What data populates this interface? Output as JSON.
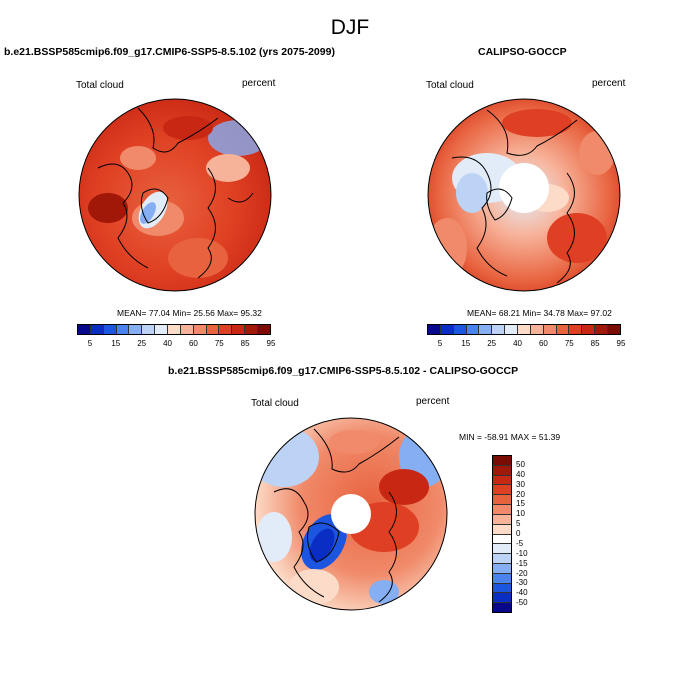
{
  "title": "DJF",
  "panel1": {
    "title": "b.e21.BSSP585cmip6.f09_g17.CMIP6-SSP5-8.5.102 (yrs 2075-2099)",
    "variable": "Total cloud",
    "units": "percent",
    "stats": "MEAN=  77.04  Min=  25.56  Max=  95.32"
  },
  "panel2": {
    "title": "CALIPSO-GOCCP",
    "variable": "Total cloud",
    "units": "percent",
    "stats": "MEAN=  68.21  Min=  34.78  Max=  97.02"
  },
  "panel3": {
    "title": "b.e21.BSSP585cmip6.f09_g17.CMIP6-SSP5-8.5.102 - CALIPSO-GOCCP",
    "variable": "Total cloud",
    "units": "percent",
    "stats": "MIN = -58.91 MAX =  51.39"
  },
  "colorbar_abs": {
    "colors": [
      "#08088c",
      "#0a2dc4",
      "#1c55e0",
      "#4a83ee",
      "#86aef2",
      "#bcd3f5",
      "#e2ecf8",
      "#fcdcc8",
      "#f7b39a",
      "#f08a6a",
      "#e8623e",
      "#df3f22",
      "#c82813",
      "#a11808",
      "#7a0c04"
    ],
    "ticks": [
      "5",
      "15",
      "25",
      "40",
      "60",
      "75",
      "85",
      "95"
    ]
  },
  "colorbar_diff": {
    "colors": [
      "#7a0c04",
      "#a11808",
      "#c82813",
      "#df3f22",
      "#e8623e",
      "#f08a6a",
      "#f7b39a",
      "#fcdcc8",
      "#ffffff",
      "#e2ecf8",
      "#bcd3f5",
      "#86aef2",
      "#4a83ee",
      "#1c55e0",
      "#0a2dc4",
      "#08088c"
    ],
    "ticks": [
      "50",
      "40",
      "30",
      "20",
      "15",
      "10",
      "5",
      "0",
      "-5",
      "-10",
      "-15",
      "-20",
      "-30",
      "-40",
      "-50"
    ]
  }
}
